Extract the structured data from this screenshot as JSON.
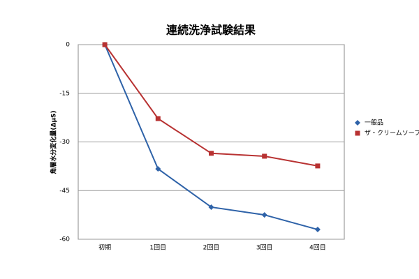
{
  "chart_data": {
    "type": "line",
    "title": "連続洗浄試験結果",
    "y_label": "角層水分変化量(ΔμS)",
    "categories": [
      "初期",
      "1回目",
      "2回目",
      "3回目",
      "4回目"
    ],
    "series": [
      {
        "name": "一般品",
        "color": "#2e62a8",
        "values": [
          0,
          -38.3,
          -50.1,
          -52.5,
          -57.0
        ]
      },
      {
        "name": "ザ・クリームソープ",
        "color": "#b83232",
        "values": [
          0,
          -22.8,
          -33.5,
          -34.4,
          -37.4
        ]
      }
    ],
    "ylim": [
      -60,
      0
    ],
    "yticks": [
      0,
      -15,
      -30,
      -45,
      -60
    ],
    "grid": true,
    "legend": "right"
  }
}
